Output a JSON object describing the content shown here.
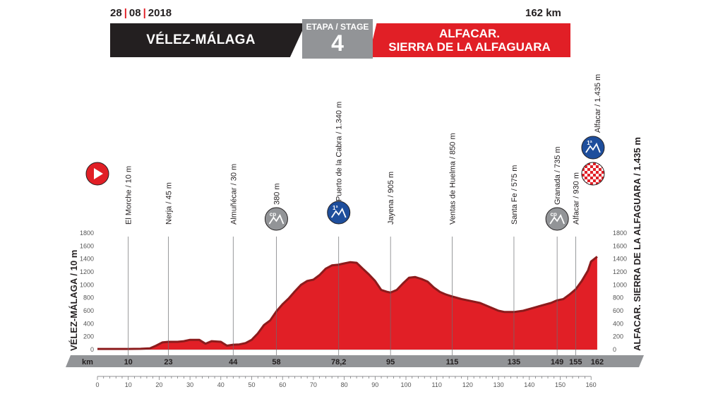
{
  "header": {
    "date_day": "28",
    "date_month": "08",
    "date_year": "2018",
    "distance": "162 km",
    "start": "VÉLEZ-MÁLAGA",
    "stage_label": "ETAPA / STAGE",
    "stage_number": "4",
    "finish_line1": "ALFACAR.",
    "finish_line2": "SIERRA DE LA ALFAGUARA"
  },
  "colors": {
    "profile": "#e11f26",
    "profile_dark": "#8c1b1c",
    "header_dark": "#231f20",
    "stage_grey": "#929497",
    "km_bar": "#929497",
    "cat1": "#1e4e9c",
    "cp": "#929497"
  },
  "icons": {
    "start": "play-icon",
    "finish": "checkered-flag-icon",
    "category": "mountain-category-icon"
  },
  "chart_data": {
    "type": "area",
    "title": "",
    "start_label": "VÉLEZ-MÁLAGA / 10 m",
    "finish_label": "ALFACAR. SIERRA DE LA ALFAGUARA / 1.435 m",
    "xlabel": "km",
    "xlim": [
      0,
      162
    ],
    "ylim": [
      0,
      1900
    ],
    "x_ticks": [
      0,
      10,
      20,
      30,
      40,
      50,
      60,
      70,
      80,
      90,
      100,
      110,
      120,
      130,
      140,
      150,
      160
    ],
    "y_ticks": [
      0,
      200,
      400,
      600,
      800,
      1000,
      1200,
      1400,
      1600,
      1800
    ],
    "km_bar_values": [
      "10",
      "23",
      "44",
      "58",
      "78,2",
      "95",
      "115",
      "135",
      "149",
      "155",
      "162"
    ],
    "profile": {
      "x": [
        0,
        10,
        14,
        17,
        19,
        21,
        23,
        26,
        28,
        30,
        33,
        35,
        37,
        40,
        42,
        44,
        46,
        48,
        50,
        52,
        54,
        56,
        58,
        60,
        62,
        64,
        66,
        68,
        70,
        72,
        74,
        76,
        78,
        80,
        82,
        84,
        86,
        88,
        90,
        92,
        94,
        95,
        97,
        99,
        101,
        103,
        105,
        107,
        109,
        111,
        113,
        115,
        118,
        121,
        124,
        127,
        130,
        132,
        135,
        138,
        141,
        144,
        147,
        149,
        151,
        153,
        155,
        157,
        159,
        160,
        162
      ],
      "y": [
        10,
        10,
        12,
        20,
        60,
        110,
        120,
        120,
        130,
        150,
        150,
        90,
        130,
        120,
        60,
        75,
        80,
        100,
        150,
        250,
        380,
        450,
        590,
        700,
        790,
        900,
        1000,
        1060,
        1080,
        1150,
        1250,
        1300,
        1310,
        1330,
        1350,
        1340,
        1250,
        1160,
        1060,
        920,
        890,
        880,
        920,
        1020,
        1110,
        1120,
        1090,
        1050,
        960,
        890,
        850,
        820,
        780,
        750,
        720,
        660,
        600,
        580,
        580,
        600,
        640,
        680,
        720,
        760,
        780,
        850,
        930,
        1060,
        1220,
        1360,
        1435
      ]
    },
    "waypoints": [
      {
        "km": 10,
        "label": "El Morche / 10 m"
      },
      {
        "km": 23,
        "label": "Nerja / 45 m"
      },
      {
        "km": 44,
        "label": "Almuñécar / 30 m"
      },
      {
        "km": 58,
        "label": "380 m",
        "badge": "cp"
      },
      {
        "km": 78.2,
        "label": "Puerto de la Cabra / 1.340 m",
        "badge": "1ª"
      },
      {
        "km": 95,
        "label": "Jayena / 905 m"
      },
      {
        "km": 115,
        "label": "Ventas de Huelma / 850 m"
      },
      {
        "km": 135,
        "label": "Santa Fe / 575 m"
      },
      {
        "km": 149,
        "label": "Granada / 735 m",
        "badge": "cp"
      },
      {
        "km": 155,
        "label": "Alfacar / 930 m"
      },
      {
        "km": 162,
        "label": "Alfacar / 1.435 m",
        "badge": "1ª"
      }
    ],
    "grid": false
  }
}
